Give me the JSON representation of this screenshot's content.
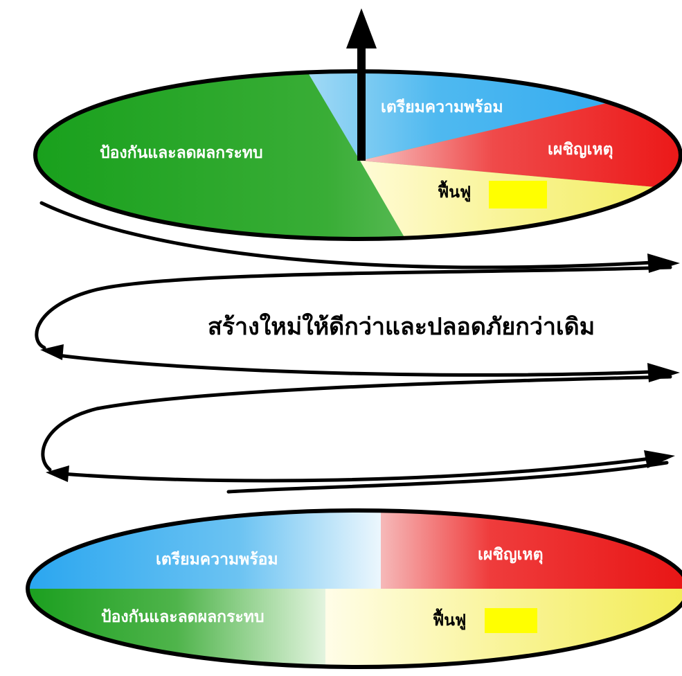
{
  "top_disc": {
    "preparedness": "เตรียมความพร้อม",
    "response": "เผชิญเหตุ",
    "recovery": "ฟื้นฟู",
    "prevention": "ป้องกันและลดผลกระทบ"
  },
  "middle_caption": "สร้างใหม่ให้ดีกว่าและปลอดภัยกว่าเดิม",
  "bottom_disc": {
    "preparedness": "เตรียมความพร้อม",
    "response": "เผชิญเหตุ",
    "recovery": "ฟื้นฟู",
    "prevention": "ป้องกันและลดผลกระทบ"
  },
  "colors": {
    "green": "#2eaa2a",
    "blue": "#3aaef0",
    "red": "#ee1c1c",
    "yellow": "#f5f07a",
    "highlight": "#ffff00",
    "ink": "#000000"
  },
  "icons": [
    "up-arrow-icon"
  ]
}
